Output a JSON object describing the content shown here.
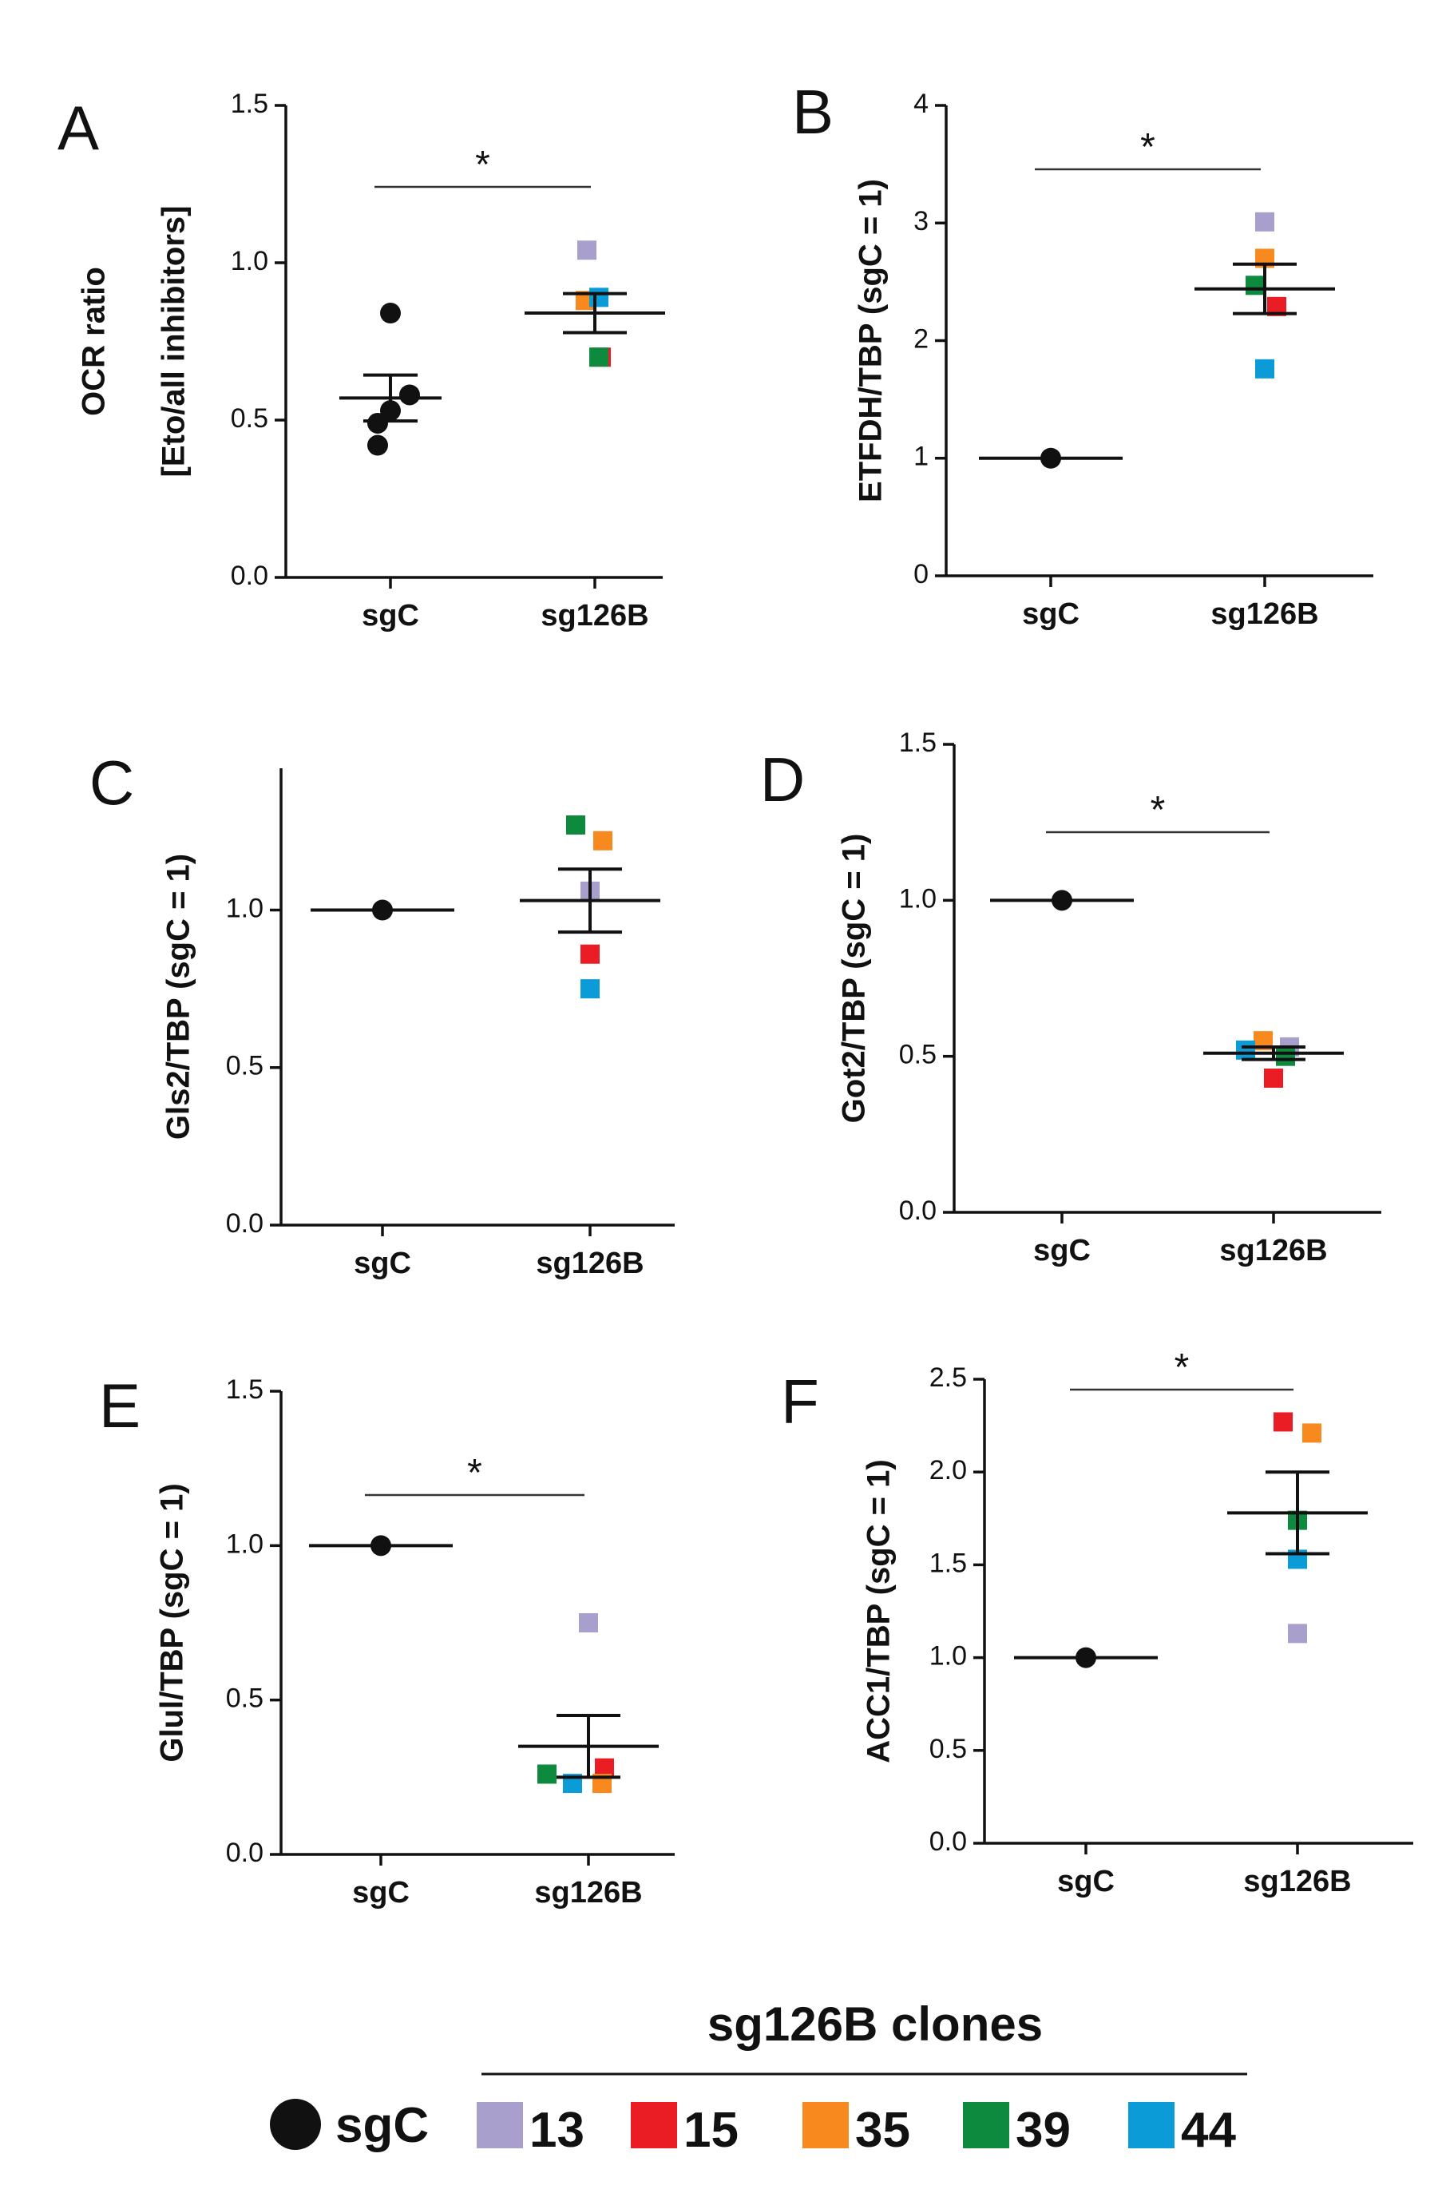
{
  "chart_data": [
    {
      "panel": "A",
      "type": "scatter",
      "ylabel": [
        "OCR ratio",
        "[Eto/all inhibitors]"
      ],
      "categories": [
        "sgC",
        "sg126B"
      ],
      "ylim": [
        0,
        1.5
      ],
      "yticks": [
        "0.0",
        "0.5",
        "1.0",
        "1.5"
      ],
      "significance": "*",
      "sgC_points": [
        0.84,
        0.58,
        0.53,
        0.49,
        0.42
      ],
      "sgC_mean": 0.57,
      "sgC_sem": 0.073,
      "clone_points": [
        {
          "clone": "13",
          "y": 1.04
        },
        {
          "clone": "15",
          "y": 0.7
        },
        {
          "clone": "35",
          "y": 0.88
        },
        {
          "clone": "39",
          "y": 0.7
        },
        {
          "clone": "44",
          "y": 0.89
        }
      ],
      "sg126B_mean": 0.84,
      "sg126B_sem": 0.062
    },
    {
      "panel": "B",
      "type": "scatter",
      "ylabel": [
        "ETFDH/TBP (sgC = 1)"
      ],
      "categories": [
        "sgC",
        "sg126B"
      ],
      "ylim": [
        0,
        4
      ],
      "yticks": [
        "0",
        "1",
        "2",
        "3",
        "4"
      ],
      "significance": "*",
      "sgC_points": [
        1.0
      ],
      "sgC_mean": 1.0,
      "sgC_sem": 0,
      "clone_points": [
        {
          "clone": "13",
          "y": 3.01
        },
        {
          "clone": "15",
          "y": 2.29
        },
        {
          "clone": "35",
          "y": 2.7
        },
        {
          "clone": "39",
          "y": 2.47
        },
        {
          "clone": "44",
          "y": 1.76
        }
      ],
      "sg126B_mean": 2.44,
      "sg126B_sem": 0.21
    },
    {
      "panel": "C",
      "type": "scatter",
      "ylabel": [
        "Gls2/TBP (sgC = 1)"
      ],
      "categories": [
        "sgC",
        "sg126B"
      ],
      "ylim": [
        0,
        1.45
      ],
      "yticks": [
        "0.0",
        "0.5",
        "1.0"
      ],
      "significance": "",
      "sgC_points": [
        1.0
      ],
      "sgC_mean": 1.0,
      "sgC_sem": 0,
      "clone_points": [
        {
          "clone": "13",
          "y": 1.06
        },
        {
          "clone": "15",
          "y": 0.86
        },
        {
          "clone": "35",
          "y": 1.22
        },
        {
          "clone": "39",
          "y": 1.27
        },
        {
          "clone": "44",
          "y": 0.75
        }
      ],
      "sg126B_mean": 1.03,
      "sg126B_sem": 0.1
    },
    {
      "panel": "D",
      "type": "scatter",
      "ylabel": [
        "Got2/TBP (sgC = 1)"
      ],
      "categories": [
        "sgC",
        "sg126B"
      ],
      "ylim": [
        0,
        1.5
      ],
      "yticks": [
        "0.0",
        "0.5",
        "1.0",
        "1.5"
      ],
      "significance": "*",
      "sgC_points": [
        1.0
      ],
      "sgC_mean": 1.0,
      "sgC_sem": 0,
      "clone_points": [
        {
          "clone": "13",
          "y": 0.53
        },
        {
          "clone": "15",
          "y": 0.43
        },
        {
          "clone": "35",
          "y": 0.55
        },
        {
          "clone": "39",
          "y": 0.5
        },
        {
          "clone": "44",
          "y": 0.52
        }
      ],
      "sg126B_mean": 0.51,
      "sg126B_sem": 0.02
    },
    {
      "panel": "E",
      "type": "scatter",
      "ylabel": [
        "Glul/TBP (sgC = 1)"
      ],
      "categories": [
        "sgC",
        "sg126B"
      ],
      "ylim": [
        0,
        1.5
      ],
      "yticks": [
        "0.0",
        "0.5",
        "1.0",
        "1.5"
      ],
      "significance": "*",
      "sgC_points": [
        1.0
      ],
      "sgC_mean": 1.0,
      "sgC_sem": 0,
      "clone_points": [
        {
          "clone": "13",
          "y": 0.75
        },
        {
          "clone": "15",
          "y": 0.28
        },
        {
          "clone": "35",
          "y": 0.23
        },
        {
          "clone": "39",
          "y": 0.26
        },
        {
          "clone": "44",
          "y": 0.23
        }
      ],
      "sg126B_mean": 0.35,
      "sg126B_sem": 0.1
    },
    {
      "panel": "F",
      "type": "scatter",
      "ylabel": [
        "ACC1/TBP (sgC = 1)"
      ],
      "categories": [
        "sgC",
        "sg126B"
      ],
      "ylim": [
        0,
        2.5
      ],
      "yticks": [
        "0.0",
        "0.5",
        "1.0",
        "1.5",
        "2.0",
        "2.5"
      ],
      "significance": "*",
      "sgC_points": [
        1.0
      ],
      "sgC_mean": 1.0,
      "sgC_sem": 0,
      "clone_points": [
        {
          "clone": "13",
          "y": 1.13
        },
        {
          "clone": "15",
          "y": 2.27
        },
        {
          "clone": "35",
          "y": 2.21
        },
        {
          "clone": "39",
          "y": 1.74
        },
        {
          "clone": "44",
          "y": 1.53
        }
      ],
      "sg126B_mean": 1.78,
      "sg126B_sem": 0.22
    }
  ],
  "legend": {
    "title": "sg126B clones",
    "control_label": "sgC",
    "clones": [
      {
        "label": "13",
        "color": "#a99fcd"
      },
      {
        "label": "15",
        "color": "#ea1c24"
      },
      {
        "label": "35",
        "color": "#f7891f"
      },
      {
        "label": "39",
        "color": "#0e8a3e"
      },
      {
        "label": "44",
        "color": "#0b9bd7"
      }
    ]
  },
  "colors": {
    "control": "#111111",
    "axis": "#111111"
  }
}
